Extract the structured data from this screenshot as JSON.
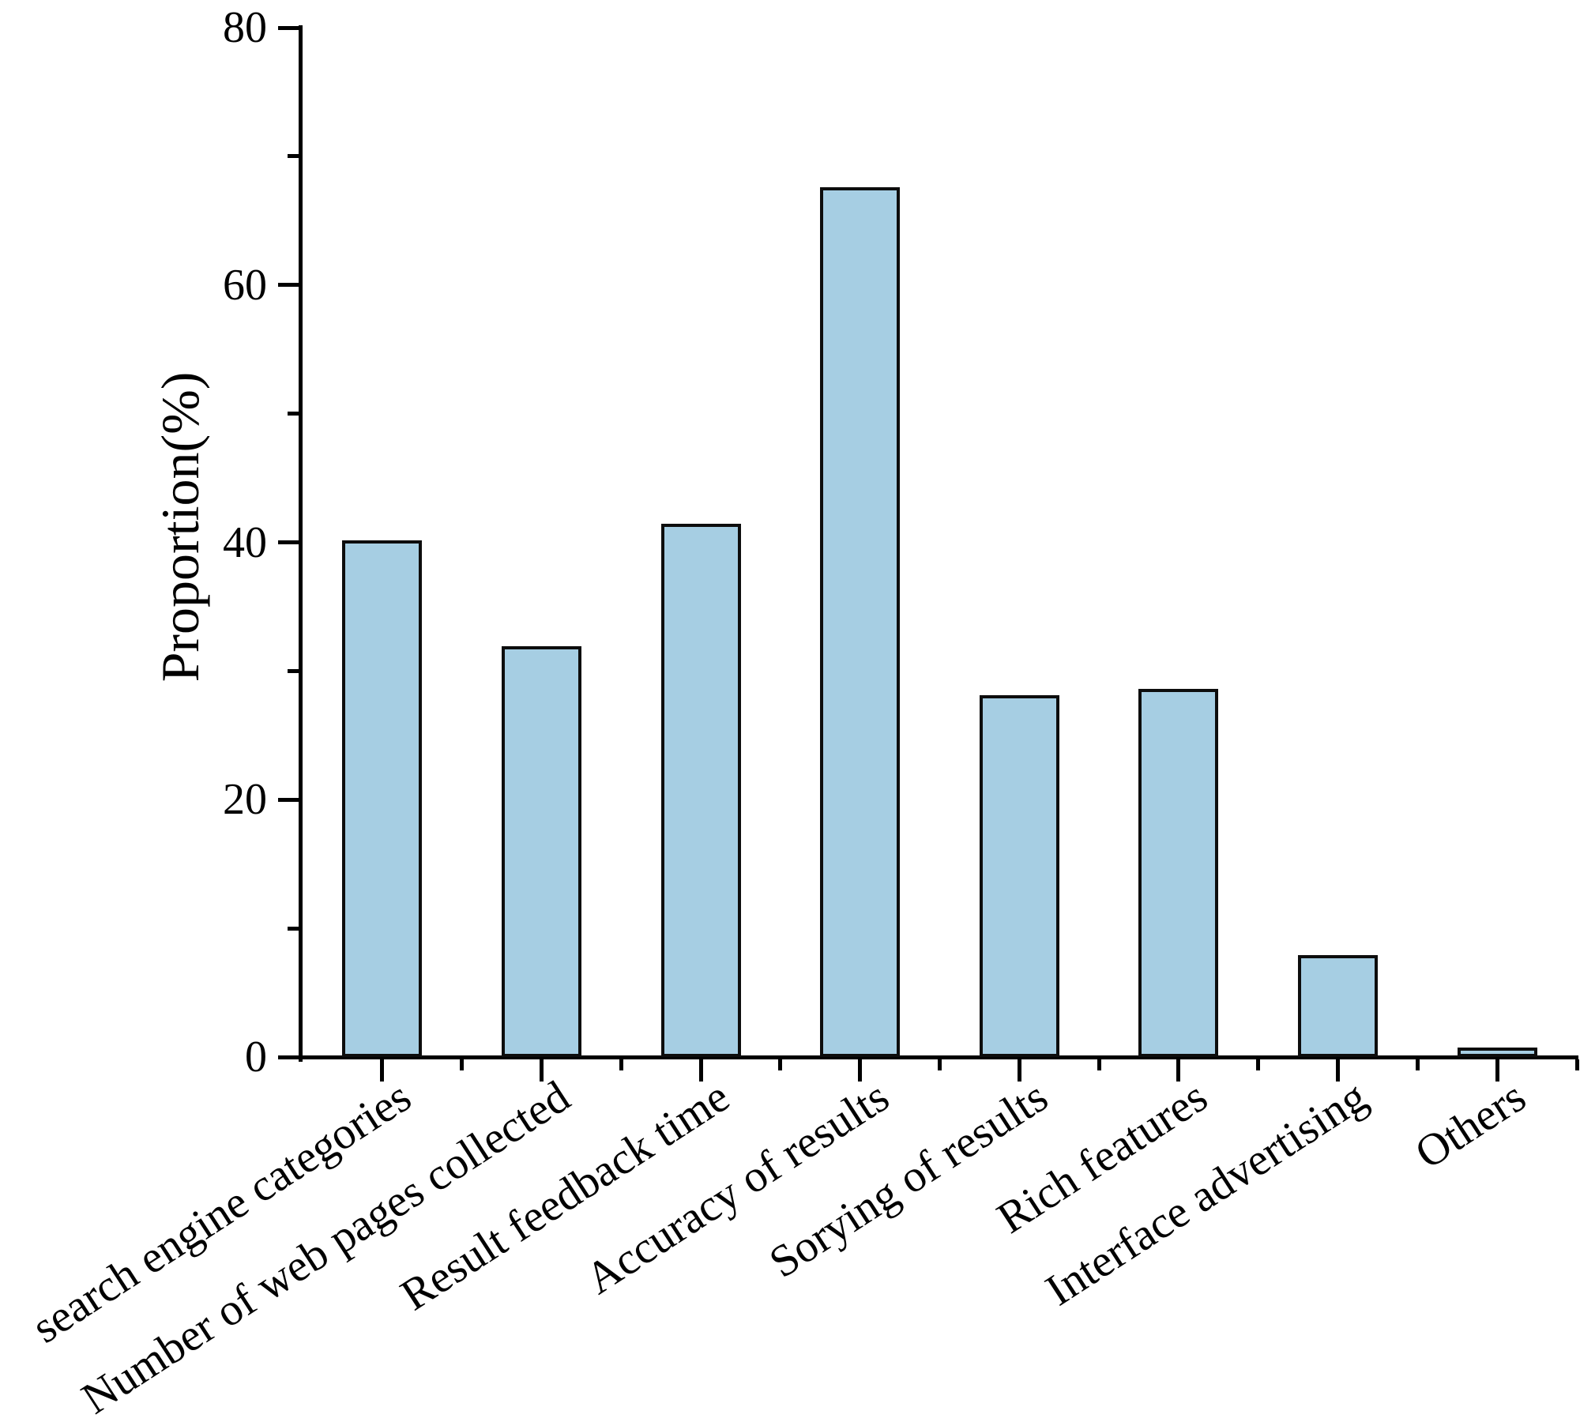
{
  "chart_data": {
    "type": "bar",
    "title": "",
    "xlabel": "",
    "ylabel": "Proportion(%)",
    "ylim": [
      0,
      80
    ],
    "yticks_major": [
      0,
      20,
      40,
      60,
      80
    ],
    "yticks_minor": [
      10,
      30,
      50,
      70
    ],
    "grid": "off",
    "legend": "none",
    "category_label_rotation_deg": -33,
    "categories": [
      "search engine categories",
      "Number of web pages collected",
      "Result feedback time",
      "Accuracy of results",
      "Sorying of results",
      "Rich features",
      "Interface advertising",
      "Others"
    ],
    "values": [
      40,
      31.8,
      41.3,
      67.5,
      28,
      28.5,
      7.8,
      0.6
    ],
    "colors": {
      "bar_fill": "#a6cee3",
      "bar_border": "#0d0d0d",
      "axis": "#000000",
      "background": "#ffffff"
    }
  }
}
